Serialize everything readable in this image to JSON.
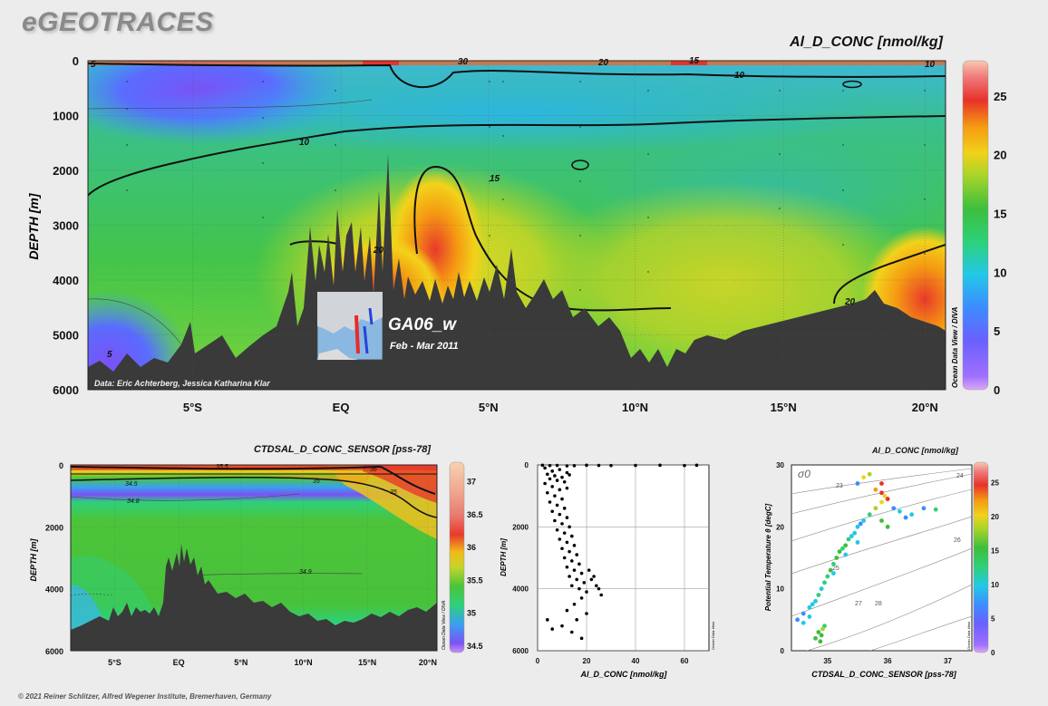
{
  "header": {
    "logo": "eGEOTRACES",
    "main_variable": "Al_D_CONC [nmol/kg]",
    "footer": "© 2021 Reiner Schlitzer, Alfred Wegener Institute, Bremerhaven, Germany"
  },
  "main_section": {
    "cruise": "GA06_w",
    "period": "Feb - Mar 2011",
    "credit": "Data: Eric Achterberg, Jessica Katharina Klar",
    "odv_label": "Ocean Data View / DIVA"
  },
  "colors": {
    "low": "#8a52f0",
    "mid": "#3cc45a",
    "high": "#e8322a",
    "land": "#3a3a3a"
  },
  "chart_data": [
    {
      "type": "heatmap",
      "title": "Al_D_CONC [nmol/kg]",
      "ylabel": "DEPTH [m]",
      "x_ticks": [
        "5°S",
        "EQ",
        "5°N",
        "10°N",
        "15°N",
        "20°N"
      ],
      "y_ticks": [
        0,
        1000,
        2000,
        3000,
        4000,
        5000,
        6000
      ],
      "ylim": [
        6000,
        0
      ],
      "colorbar": {
        "min": 0,
        "max": 28,
        "ticks": [
          0,
          5,
          10,
          15,
          20,
          25
        ]
      },
      "contour_labels": [
        "5",
        "10",
        "10",
        "15",
        "20",
        "20",
        "30",
        "20",
        "10",
        "15",
        "5"
      ]
    },
    {
      "type": "heatmap",
      "title": "CTDSAL_D_CONC_SENSOR [pss-78]",
      "ylabel": "DEPTH [m]",
      "x_ticks": [
        "5°S",
        "EQ",
        "5°N",
        "10°N",
        "15°N",
        "20°N"
      ],
      "y_ticks": [
        0,
        2000,
        4000,
        6000
      ],
      "ylim": [
        6000,
        0
      ],
      "colorbar": {
        "min": 34.4,
        "max": 37.3,
        "ticks": [
          34.5,
          35,
          35.5,
          36,
          36.5,
          37
        ]
      },
      "contour_labels": [
        "34.5",
        "34.8",
        "35",
        "35.5",
        "36",
        "34.9",
        "35"
      ],
      "odv_label": "Ocean Data View / DIVA"
    },
    {
      "type": "scatter",
      "xlabel": "Al_D_CONC [nmol/kg]",
      "ylabel": "DEPTH [m]",
      "xlim": [
        0,
        70
      ],
      "ylim": [
        6000,
        0
      ],
      "x_ticks": [
        0,
        20,
        40,
        60
      ],
      "y_ticks": [
        0,
        2000,
        4000,
        6000
      ],
      "odv_label": "Ocean Data View",
      "points": [
        [
          2,
          10
        ],
        [
          5,
          20
        ],
        [
          8,
          15
        ],
        [
          12,
          30
        ],
        [
          15,
          25
        ],
        [
          20,
          10
        ],
        [
          25,
          15
        ],
        [
          30,
          20
        ],
        [
          40,
          15
        ],
        [
          50,
          10
        ],
        [
          60,
          20
        ],
        [
          65,
          10
        ],
        [
          3,
          100
        ],
        [
          6,
          200
        ],
        [
          9,
          150
        ],
        [
          12,
          250
        ],
        [
          4,
          300
        ],
        [
          7,
          350
        ],
        [
          10,
          400
        ],
        [
          13,
          320
        ],
        [
          5,
          450
        ],
        [
          8,
          500
        ],
        [
          11,
          550
        ],
        [
          3,
          600
        ],
        [
          6,
          700
        ],
        [
          9,
          800
        ],
        [
          12,
          750
        ],
        [
          4,
          900
        ],
        [
          7,
          1000
        ],
        [
          10,
          1100
        ],
        [
          5,
          1200
        ],
        [
          8,
          1300
        ],
        [
          11,
          1400
        ],
        [
          6,
          1500
        ],
        [
          9,
          1600
        ],
        [
          12,
          1700
        ],
        [
          7,
          1800
        ],
        [
          10,
          1900
        ],
        [
          13,
          2000
        ],
        [
          8,
          2100
        ],
        [
          11,
          2200
        ],
        [
          14,
          2300
        ],
        [
          9,
          2400
        ],
        [
          12,
          2500
        ],
        [
          15,
          2600
        ],
        [
          10,
          2700
        ],
        [
          13,
          2800
        ],
        [
          16,
          2900
        ],
        [
          11,
          3000
        ],
        [
          14,
          3100
        ],
        [
          17,
          3200
        ],
        [
          12,
          3300
        ],
        [
          15,
          3400
        ],
        [
          18,
          3500
        ],
        [
          13,
          3600
        ],
        [
          16,
          3700
        ],
        [
          19,
          3800
        ],
        [
          14,
          3900
        ],
        [
          17,
          4000
        ],
        [
          20,
          4100
        ],
        [
          22,
          3700
        ],
        [
          24,
          3900
        ],
        [
          26,
          4200
        ],
        [
          18,
          4300
        ],
        [
          15,
          4500
        ],
        [
          12,
          4700
        ],
        [
          20,
          4800
        ],
        [
          16,
          5000
        ],
        [
          10,
          5200
        ],
        [
          14,
          5400
        ],
        [
          18,
          5600
        ],
        [
          4,
          5000
        ],
        [
          6,
          5300
        ],
        [
          21,
          3400
        ],
        [
          23,
          3600
        ],
        [
          25,
          4000
        ]
      ]
    },
    {
      "type": "scatter",
      "title": "Al_D_CONC [nmol/kg]",
      "xlabel": "CTDSAL_D_CONC_SENSOR [pss-78]",
      "ylabel": "Potential Temperature θ [degC]",
      "xlim": [
        34.4,
        37.4
      ],
      "ylim": [
        0,
        30
      ],
      "x_ticks": [
        35,
        36,
        37
      ],
      "y_ticks": [
        0,
        10,
        20,
        30
      ],
      "isopycnals": [
        "23",
        "24",
        "25",
        "26",
        "27",
        "28"
      ],
      "sigma_label": "σ0",
      "colorbar": {
        "min": 0,
        "max": 28,
        "ticks": [
          0,
          5,
          10,
          15,
          20,
          25
        ]
      },
      "odv_label": "Ocean Data View",
      "points": [
        [
          34.5,
          5,
          8
        ],
        [
          34.6,
          6,
          9
        ],
        [
          34.7,
          7,
          10
        ],
        [
          34.75,
          7.5,
          12
        ],
        [
          34.8,
          8,
          11
        ],
        [
          34.85,
          9,
          13
        ],
        [
          34.9,
          10,
          12
        ],
        [
          34.95,
          11,
          14
        ],
        [
          35.0,
          12,
          13
        ],
        [
          35.05,
          13,
          15
        ],
        [
          35.1,
          14,
          14
        ],
        [
          35.15,
          15,
          16
        ],
        [
          35.2,
          16,
          15
        ],
        [
          35.25,
          16.5,
          14
        ],
        [
          35.3,
          17,
          17
        ],
        [
          35.35,
          18,
          13
        ],
        [
          35.4,
          18.5,
          12
        ],
        [
          35.45,
          19,
          11
        ],
        [
          35.5,
          20,
          10
        ],
        [
          35.55,
          20.5,
          9
        ],
        [
          35.6,
          21,
          12
        ],
        [
          35.7,
          22,
          14
        ],
        [
          35.8,
          23,
          18
        ],
        [
          35.9,
          24,
          20
        ],
        [
          35.95,
          25,
          22
        ],
        [
          35.8,
          26,
          24
        ],
        [
          35.9,
          27,
          26
        ],
        [
          35.6,
          28,
          22
        ],
        [
          35.7,
          28.5,
          18
        ],
        [
          35.5,
          27,
          8
        ],
        [
          36.1,
          23,
          7
        ],
        [
          36.2,
          22.5,
          10
        ],
        [
          36.4,
          22,
          12
        ],
        [
          36.6,
          23,
          9
        ],
        [
          36.8,
          22.8,
          14
        ],
        [
          36.0,
          20,
          15
        ],
        [
          35.9,
          21,
          16
        ],
        [
          34.8,
          2,
          15
        ],
        [
          34.85,
          3,
          17
        ],
        [
          34.9,
          2.5,
          16
        ],
        [
          34.95,
          4,
          14
        ],
        [
          34.88,
          1.5,
          15
        ],
        [
          34.92,
          3.5,
          18
        ],
        [
          34.6,
          4.5,
          11
        ],
        [
          34.7,
          5.5,
          10
        ],
        [
          35.1,
          12.5,
          12
        ],
        [
          35.3,
          15.5,
          11
        ],
        [
          35.5,
          17.5,
          10
        ],
        [
          36.0,
          24.5,
          27
        ],
        [
          35.9,
          25.5,
          25
        ],
        [
          36.3,
          21.5,
          8
        ]
      ]
    }
  ]
}
